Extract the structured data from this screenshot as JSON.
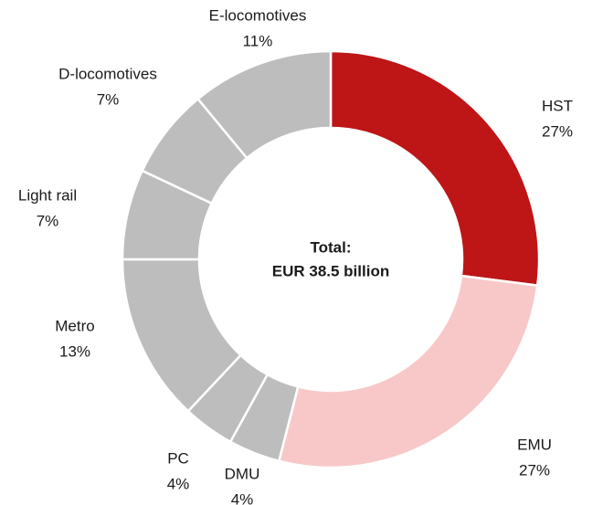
{
  "chart_data": {
    "type": "donut",
    "categories": [
      "HST",
      "EMU",
      "DMU",
      "PC",
      "Metro",
      "Light rail",
      "D-locomotives",
      "E-locomotives"
    ],
    "values": [
      27,
      27,
      4,
      4,
      13,
      7,
      7,
      11
    ],
    "value_labels": [
      "27%",
      "27%",
      "4%",
      "4%",
      "13%",
      "7%",
      "7%",
      "11%"
    ],
    "colors": [
      "#be1516",
      "#f8c8c8",
      "#bdbdbd",
      "#bdbdbd",
      "#bdbdbd",
      "#bdbdbd",
      "#bdbdbd",
      "#bdbdbd"
    ],
    "annotations": [
      "Total:",
      "EUR 38.5 billion"
    ]
  }
}
